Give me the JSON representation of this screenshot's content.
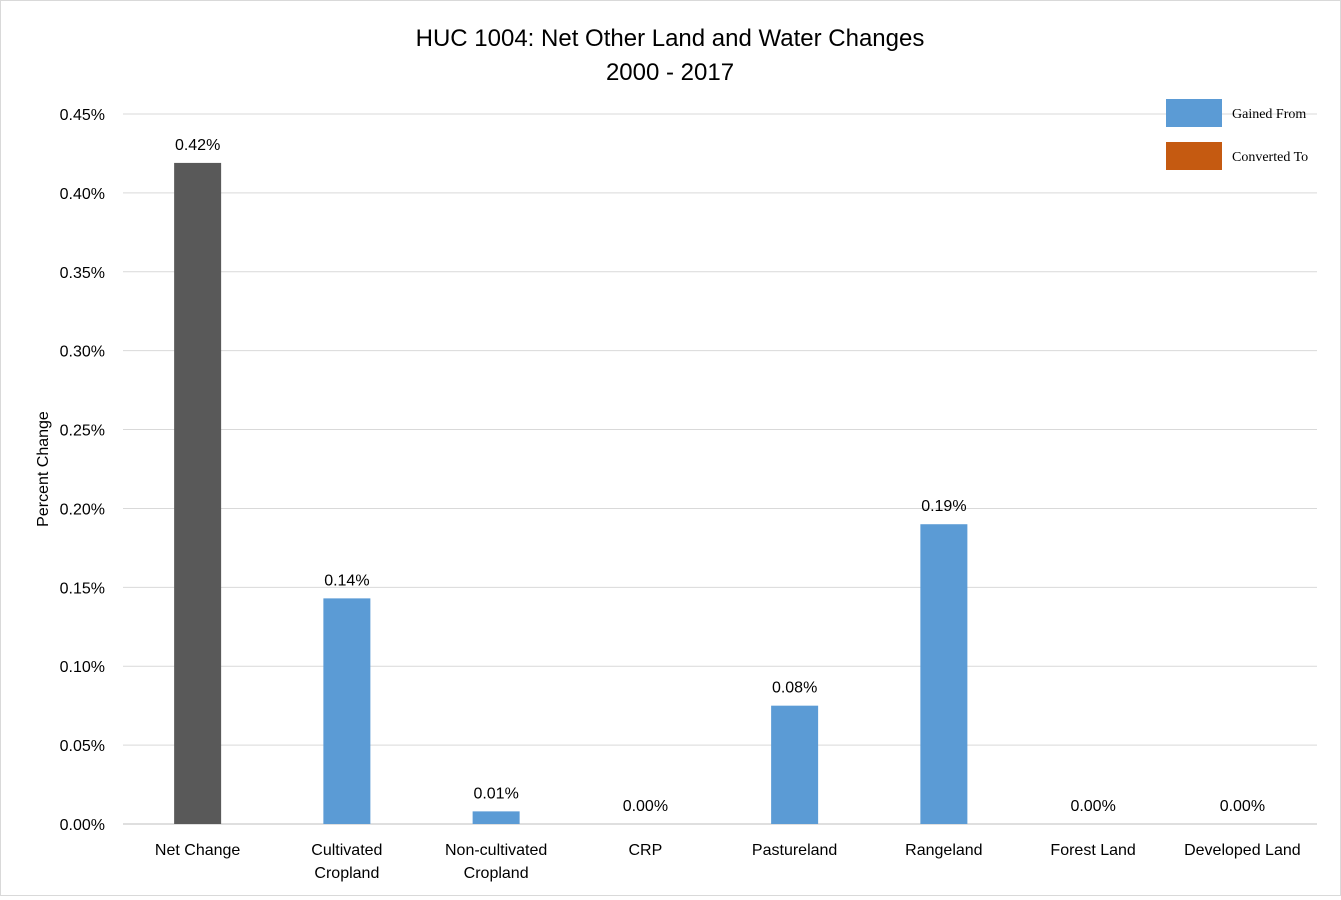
{
  "chart_data": {
    "type": "bar",
    "title": "HUC 1004: Net Other Land and Water Changes",
    "subtitle": "2000 - 2017",
    "xlabel": "",
    "ylabel": "Percent Change",
    "ylim": [
      0,
      0.45
    ],
    "yticks": [
      "0.00%",
      "0.05%",
      "0.10%",
      "0.15%",
      "0.20%",
      "0.25%",
      "0.30%",
      "0.35%",
      "0.40%",
      "0.45%"
    ],
    "grid": true,
    "legend_position": "top-right",
    "categories": [
      [
        "Net Change"
      ],
      [
        "Cultivated",
        "Cropland"
      ],
      [
        "Non-cultivated",
        "Cropland"
      ],
      [
        "CRP"
      ],
      [
        "Pastureland"
      ],
      [
        "Rangeland"
      ],
      [
        "Forest Land"
      ],
      [
        "Developed Land"
      ]
    ],
    "values": [
      0.419,
      0.143,
      0.008,
      0,
      0.075,
      0.19,
      0,
      0
    ],
    "data_labels": [
      "0.42%",
      "0.14%",
      "0.01%",
      "0.00%",
      "0.08%",
      "0.19%",
      "0.00%",
      "0.00%"
    ],
    "bar_colors": [
      "#595959",
      "#5b9bd5",
      "#5b9bd5",
      "#5b9bd5",
      "#5b9bd5",
      "#5b9bd5",
      "#5b9bd5",
      "#5b9bd5"
    ],
    "legend": [
      {
        "name": "Gained From",
        "color": "#5b9bd5"
      },
      {
        "name": "Converted To",
        "color": "#c55a11"
      }
    ],
    "colors": {
      "grid": "#d9d9d9",
      "axis": "#bfbfbf",
      "text": "#000000",
      "tick_text": "#000000"
    }
  }
}
